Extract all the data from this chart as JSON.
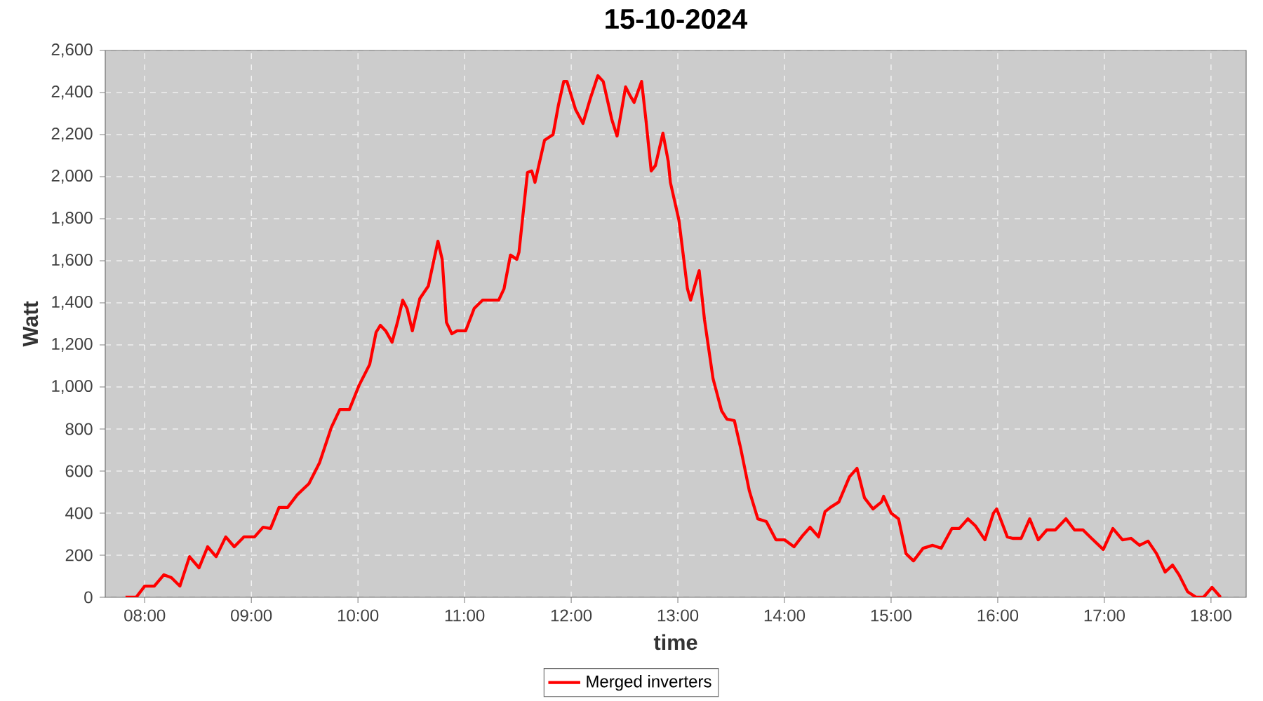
{
  "chart_data": {
    "type": "line",
    "title": "15-10-2024",
    "xlabel": "time",
    "ylabel": "Watt",
    "xlim": [
      7.63,
      18.33
    ],
    "xticks": [
      {
        "value": 8,
        "label": "08:00"
      },
      {
        "value": 9,
        "label": "09:00"
      },
      {
        "value": 10,
        "label": "10:00"
      },
      {
        "value": 11,
        "label": "11:00"
      },
      {
        "value": 12,
        "label": "12:00"
      },
      {
        "value": 13,
        "label": "13:00"
      },
      {
        "value": 14,
        "label": "14:00"
      },
      {
        "value": 15,
        "label": "15:00"
      },
      {
        "value": 16,
        "label": "16:00"
      },
      {
        "value": 17,
        "label": "17:00"
      },
      {
        "value": 18,
        "label": "18:00"
      }
    ],
    "ylim": [
      0,
      2600
    ],
    "yticks": [
      0,
      200,
      400,
      600,
      800,
      {
        "value": 1000,
        "label": "1,000"
      },
      {
        "value": 1200,
        "label": "1,200"
      },
      {
        "value": 1400,
        "label": "1,400"
      },
      {
        "value": 1600,
        "label": "1,600"
      },
      {
        "value": 1800,
        "label": "1,800"
      },
      {
        "value": 2000,
        "label": "2,000"
      },
      {
        "value": 2200,
        "label": "2,200"
      },
      {
        "value": 2400,
        "label": "2,400"
      },
      {
        "value": 2600,
        "label": "2,600"
      }
    ],
    "grid": true,
    "legend": "bottom",
    "line_style": "solid",
    "series": [
      {
        "name": "Merged inverters",
        "color": "#ff0000",
        "x": [
          7.82,
          7.92,
          8.0,
          8.09,
          8.18,
          8.25,
          8.33,
          8.42,
          8.51,
          8.59,
          8.67,
          8.76,
          8.84,
          8.93,
          9.03,
          9.11,
          9.18,
          9.26,
          9.34,
          9.43,
          9.54,
          9.64,
          9.75,
          9.83,
          9.92,
          10.01,
          10.11,
          10.17,
          10.21,
          10.26,
          10.32,
          10.37,
          10.42,
          10.46,
          10.51,
          10.58,
          10.66,
          10.75,
          10.79,
          10.83,
          10.88,
          10.93,
          11.01,
          11.09,
          11.17,
          11.32,
          11.37,
          11.43,
          11.49,
          11.51,
          11.59,
          11.63,
          11.66,
          11.75,
          11.83,
          11.88,
          11.93,
          11.96,
          12.04,
          12.11,
          12.18,
          12.25,
          12.3,
          12.38,
          12.43,
          12.51,
          12.55,
          12.59,
          12.66,
          12.7,
          12.75,
          12.79,
          12.86,
          12.91,
          12.93,
          13.01,
          13.09,
          13.12,
          13.2,
          13.25,
          13.33,
          13.41,
          13.46,
          13.53,
          13.59,
          13.67,
          13.75,
          13.83,
          13.92,
          14.0,
          14.09,
          14.17,
          14.24,
          14.32,
          14.38,
          14.43,
          14.51,
          14.61,
          14.68,
          14.75,
          14.83,
          14.91,
          14.93,
          15.0,
          15.07,
          15.14,
          15.21,
          15.3,
          15.39,
          15.47,
          15.57,
          15.64,
          15.72,
          15.79,
          15.88,
          15.96,
          15.99,
          16.09,
          16.14,
          16.22,
          16.3,
          16.38,
          16.46,
          16.54,
          16.64,
          16.72,
          16.8,
          16.88,
          16.99,
          17.08,
          17.17,
          17.25,
          17.33,
          17.41,
          17.49,
          17.57,
          17.64,
          17.7,
          17.78,
          17.86,
          17.93,
          18.01,
          18.09
        ],
        "values": [
          0,
          0,
          53,
          53,
          107,
          93,
          53,
          193,
          140,
          240,
          193,
          287,
          240,
          287,
          287,
          333,
          327,
          427,
          427,
          487,
          540,
          640,
          807,
          893,
          893,
          1007,
          1107,
          1260,
          1293,
          1267,
          1213,
          1307,
          1413,
          1373,
          1267,
          1420,
          1480,
          1693,
          1607,
          1307,
          1253,
          1267,
          1267,
          1373,
          1413,
          1413,
          1467,
          1627,
          1607,
          1640,
          2020,
          2027,
          1973,
          2173,
          2200,
          2340,
          2453,
          2453,
          2320,
          2253,
          2373,
          2480,
          2453,
          2273,
          2193,
          2427,
          2387,
          2353,
          2453,
          2273,
          2027,
          2053,
          2207,
          2073,
          1973,
          1793,
          1467,
          1413,
          1553,
          1320,
          1040,
          887,
          847,
          840,
          707,
          507,
          373,
          360,
          273,
          273,
          240,
          293,
          333,
          287,
          407,
          427,
          453,
          573,
          613,
          473,
          420,
          453,
          480,
          400,
          373,
          207,
          173,
          233,
          247,
          233,
          327,
          327,
          373,
          340,
          273,
          400,
          420,
          287,
          280,
          280,
          373,
          273,
          320,
          320,
          373,
          320,
          320,
          280,
          227,
          327,
          273,
          280,
          247,
          267,
          207,
          120,
          153,
          107,
          27,
          0,
          0,
          47,
          0
        ]
      }
    ]
  }
}
